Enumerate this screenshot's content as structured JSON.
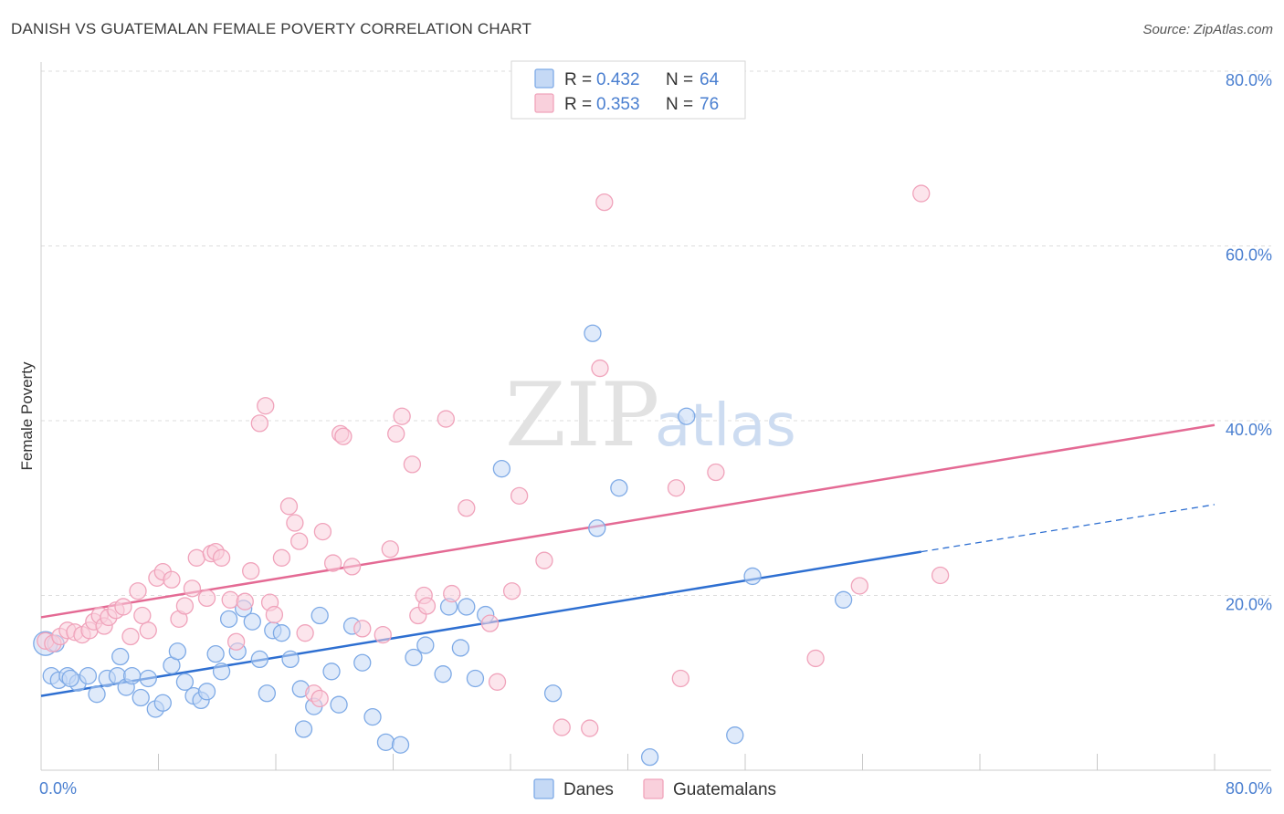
{
  "title": "DANISH VS GUATEMALAN FEMALE POVERTY CORRELATION CHART",
  "source": "Source: ZipAtlas.com",
  "watermark": {
    "zip": "ZIP",
    "atlas": "atlas"
  },
  "chart_data": {
    "type": "scatter",
    "ylabel": "Female Poverty",
    "xlim": [
      0,
      80
    ],
    "ylim": [
      0,
      80
    ],
    "x_ticks": [
      {
        "value": 0,
        "label": "0.0%"
      },
      {
        "value": 80,
        "label": "80.0%"
      }
    ],
    "y_ticks": [
      {
        "value": 20,
        "label": "20.0%"
      },
      {
        "value": 40,
        "label": "40.0%"
      },
      {
        "value": 60,
        "label": "60.0%"
      },
      {
        "value": 80,
        "label": "80.0%"
      }
    ],
    "grid": true,
    "legend_position": "top-center",
    "legend": [
      {
        "r_label": "R = ",
        "r_value": "0.432",
        "n_label": "N = ",
        "n_value": "64"
      },
      {
        "r_label": "R = ",
        "r_value": "0.353",
        "n_label": "N = ",
        "n_value": "76"
      }
    ],
    "series": [
      {
        "name": "Danes",
        "color": "#7eaae6",
        "fill": "#c5d9f5",
        "line_color": "#2e6fd1",
        "trend": {
          "x0": 0,
          "y0": 8.5,
          "x1": 60,
          "y1": 25,
          "dash_x1": 80,
          "dash_y1": 30.4
        },
        "points": [
          [
            0.3,
            14.5
          ],
          [
            0.7,
            10.8
          ],
          [
            1.2,
            10.3
          ],
          [
            1.8,
            10.8
          ],
          [
            2.5,
            10.0
          ],
          [
            3.2,
            10.8
          ],
          [
            3.8,
            8.7
          ],
          [
            4.5,
            10.5
          ],
          [
            5.2,
            10.8
          ],
          [
            5.4,
            13.0
          ],
          [
            5.8,
            9.5
          ],
          [
            6.2,
            10.8
          ],
          [
            6.8,
            8.3
          ],
          [
            7.3,
            10.5
          ],
          [
            7.8,
            7.0
          ],
          [
            8.3,
            7.7
          ],
          [
            8.9,
            12.0
          ],
          [
            9.3,
            13.6
          ],
          [
            9.8,
            10.1
          ],
          [
            10.4,
            8.5
          ],
          [
            10.9,
            8.0
          ],
          [
            11.3,
            9.0
          ],
          [
            11.9,
            13.3
          ],
          [
            12.3,
            11.3
          ],
          [
            12.8,
            17.3
          ],
          [
            13.4,
            13.6
          ],
          [
            13.8,
            18.5
          ],
          [
            14.4,
            17.0
          ],
          [
            14.9,
            12.7
          ],
          [
            15.4,
            8.8
          ],
          [
            15.8,
            16.0
          ],
          [
            16.4,
            15.7
          ],
          [
            17.0,
            12.7
          ],
          [
            17.7,
            9.3
          ],
          [
            17.9,
            4.7
          ],
          [
            18.6,
            7.3
          ],
          [
            19.0,
            17.7
          ],
          [
            19.8,
            11.3
          ],
          [
            20.3,
            7.5
          ],
          [
            21.2,
            16.5
          ],
          [
            21.9,
            12.3
          ],
          [
            22.6,
            6.1
          ],
          [
            23.5,
            3.2
          ],
          [
            24.5,
            2.9
          ],
          [
            25.4,
            12.9
          ],
          [
            26.2,
            14.3
          ],
          [
            27.4,
            11.0
          ],
          [
            27.8,
            18.7
          ],
          [
            28.6,
            14.0
          ],
          [
            29.0,
            18.7
          ],
          [
            29.6,
            10.5
          ],
          [
            30.3,
            17.8
          ],
          [
            31.4,
            34.5
          ],
          [
            34.9,
            8.8
          ],
          [
            37.6,
            50.0
          ],
          [
            37.9,
            27.7
          ],
          [
            39.4,
            32.3
          ],
          [
            41.5,
            1.5
          ],
          [
            44.0,
            40.5
          ],
          [
            47.3,
            4.0
          ],
          [
            48.5,
            22.2
          ],
          [
            54.7,
            19.5
          ],
          [
            1.0,
            14.5
          ],
          [
            2.0,
            10.5
          ]
        ]
      },
      {
        "name": "Guatemalans",
        "color": "#f0a3bb",
        "fill": "#f9d0dc",
        "line_color": "#e46a94",
        "trend": {
          "x0": 0,
          "y0": 17.5,
          "x1": 80,
          "y1": 39.5
        },
        "points": [
          [
            0.3,
            14.8
          ],
          [
            0.8,
            14.5
          ],
          [
            1.3,
            15.3
          ],
          [
            1.8,
            16.0
          ],
          [
            2.3,
            15.8
          ],
          [
            2.8,
            15.5
          ],
          [
            3.3,
            16.0
          ],
          [
            3.6,
            17.0
          ],
          [
            4.0,
            17.7
          ],
          [
            4.3,
            16.5
          ],
          [
            4.6,
            17.5
          ],
          [
            5.1,
            18.3
          ],
          [
            5.6,
            18.7
          ],
          [
            6.1,
            15.3
          ],
          [
            6.6,
            20.5
          ],
          [
            6.9,
            17.7
          ],
          [
            7.3,
            16.0
          ],
          [
            7.9,
            22.0
          ],
          [
            8.3,
            22.7
          ],
          [
            8.9,
            21.8
          ],
          [
            9.4,
            17.3
          ],
          [
            9.8,
            18.8
          ],
          [
            10.3,
            20.8
          ],
          [
            10.6,
            24.3
          ],
          [
            11.3,
            19.7
          ],
          [
            11.6,
            24.8
          ],
          [
            11.9,
            25.0
          ],
          [
            12.3,
            24.3
          ],
          [
            12.9,
            19.5
          ],
          [
            13.3,
            14.7
          ],
          [
            13.9,
            19.3
          ],
          [
            14.3,
            22.8
          ],
          [
            14.9,
            39.7
          ],
          [
            15.3,
            41.7
          ],
          [
            15.6,
            19.2
          ],
          [
            15.9,
            17.8
          ],
          [
            16.4,
            24.3
          ],
          [
            16.9,
            30.2
          ],
          [
            17.3,
            28.3
          ],
          [
            17.6,
            26.2
          ],
          [
            18.0,
            15.7
          ],
          [
            18.6,
            8.8
          ],
          [
            19.0,
            8.2
          ],
          [
            19.2,
            27.3
          ],
          [
            19.9,
            23.7
          ],
          [
            20.4,
            38.5
          ],
          [
            20.6,
            38.2
          ],
          [
            21.2,
            23.3
          ],
          [
            21.9,
            16.2
          ],
          [
            23.3,
            15.5
          ],
          [
            23.8,
            25.3
          ],
          [
            24.2,
            38.5
          ],
          [
            24.6,
            40.5
          ],
          [
            25.3,
            35.0
          ],
          [
            25.7,
            17.7
          ],
          [
            26.1,
            20.0
          ],
          [
            26.3,
            18.8
          ],
          [
            27.6,
            40.2
          ],
          [
            28.0,
            20.2
          ],
          [
            29.0,
            30.0
          ],
          [
            30.6,
            16.8
          ],
          [
            31.1,
            10.1
          ],
          [
            32.1,
            20.5
          ],
          [
            32.6,
            31.4
          ],
          [
            34.3,
            24.0
          ],
          [
            35.5,
            4.9
          ],
          [
            37.4,
            4.8
          ],
          [
            38.1,
            46.0
          ],
          [
            38.4,
            65.0
          ],
          [
            43.3,
            32.3
          ],
          [
            43.6,
            10.5
          ],
          [
            46.0,
            34.1
          ],
          [
            52.8,
            12.8
          ],
          [
            55.8,
            21.1
          ],
          [
            60.0,
            66.0
          ],
          [
            61.3,
            22.3
          ]
        ]
      }
    ]
  },
  "bottom_legend": [
    {
      "label": "Danes"
    },
    {
      "label": "Guatemalans"
    }
  ]
}
